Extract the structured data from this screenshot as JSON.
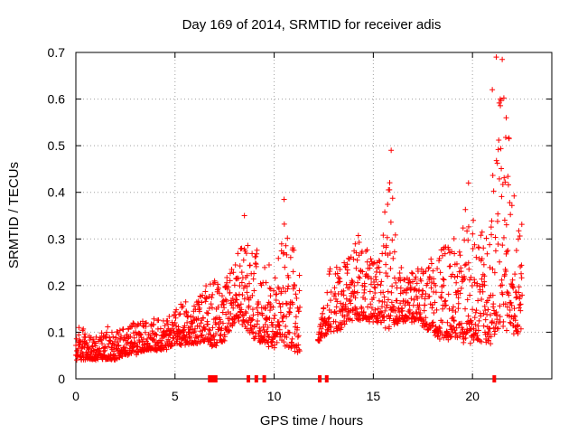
{
  "chart_data": {
    "type": "scatter",
    "title": "Day 169 of 2014, SRMTID for receiver adis",
    "xlabel": "GPS time / hours",
    "ylabel": "SRMTID / TECUs",
    "xlim": [
      0,
      24
    ],
    "ylim": [
      0,
      0.7
    ],
    "xticks": [
      0,
      5,
      10,
      15,
      20
    ],
    "yticks": [
      0,
      0.1,
      0.2,
      0.3,
      0.4,
      0.5,
      0.6,
      0.7
    ],
    "xtick_labels": [
      "0",
      "5",
      "10",
      "15",
      "20"
    ],
    "ytick_labels": [
      "0",
      "0.1",
      "0.2",
      "0.3",
      "0.4",
      "0.5",
      "0.6",
      "0.7"
    ],
    "grid": true,
    "marker": "+",
    "color": "#ff0000",
    "series": [
      {
        "name": "SRMTID",
        "envelope_hours": [
          0,
          0.5,
          1,
          1.5,
          2,
          2.5,
          3,
          3.5,
          4,
          4.5,
          5,
          5.5,
          6,
          6.5,
          7,
          7.5,
          8,
          8.5,
          9,
          9.5,
          10,
          10.5,
          11,
          12.3,
          12.8,
          13.3,
          13.8,
          14.3,
          14.8,
          15.3,
          15.8,
          16.3,
          16.8,
          17.3,
          17.8,
          18.3,
          18.8,
          19.3,
          19.8,
          20.3,
          20.8,
          21.3,
          21.6,
          21.9,
          22.2,
          22.5
        ],
        "envelope_low": [
          0.04,
          0.04,
          0.04,
          0.04,
          0.04,
          0.05,
          0.05,
          0.06,
          0.06,
          0.06,
          0.07,
          0.07,
          0.07,
          0.08,
          0.06,
          0.08,
          0.12,
          0.11,
          0.08,
          0.07,
          0.06,
          0.07,
          0.05,
          0.08,
          0.1,
          0.1,
          0.12,
          0.12,
          0.12,
          0.12,
          0.1,
          0.12,
          0.12,
          0.12,
          0.1,
          0.08,
          0.08,
          0.08,
          0.07,
          0.08,
          0.07,
          0.08,
          0.09,
          0.1,
          0.09,
          0.1
        ],
        "envelope_high": [
          0.13,
          0.11,
          0.1,
          0.12,
          0.11,
          0.12,
          0.13,
          0.13,
          0.14,
          0.13,
          0.16,
          0.18,
          0.17,
          0.22,
          0.23,
          0.23,
          0.27,
          0.35,
          0.3,
          0.3,
          0.22,
          0.38,
          0.3,
          0.12,
          0.25,
          0.27,
          0.28,
          0.33,
          0.3,
          0.28,
          0.49,
          0.26,
          0.24,
          0.25,
          0.28,
          0.3,
          0.32,
          0.33,
          0.42,
          0.36,
          0.38,
          0.69,
          0.69,
          0.56,
          0.38,
          0.35
        ],
        "samples_per_hour": 90
      }
    ],
    "data_gaps_hours": [
      [
        11.3,
        12.2
      ],
      [
        12.9,
        13.0
      ]
    ],
    "gap_markers_hours": [
      6.75,
      6.85,
      6.95,
      7.05,
      8.7,
      9.1,
      9.5,
      12.3,
      12.65,
      21.1
    ],
    "annotations": []
  }
}
